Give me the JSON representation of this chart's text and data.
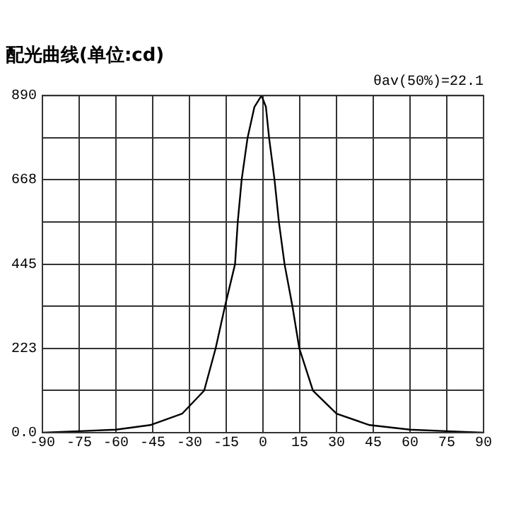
{
  "chart_data": {
    "type": "line",
    "title": "配光曲线(单位:cd)",
    "annotations": [
      "θav(50%)=22.1"
    ],
    "x": [
      -90,
      -75,
      -60,
      -46,
      -33,
      -24,
      -19.3,
      -15.5,
      -11.4,
      -10.3,
      -8.7,
      -6.3,
      -3.5,
      -0.6,
      1.2,
      2.5,
      4.7,
      6.5,
      8.8,
      12,
      14.8,
      20.4,
      30,
      43.5,
      60,
      75,
      90
    ],
    "series": [
      {
        "color": "#000000",
        "values": [
          0,
          4,
          8,
          20,
          50,
          111,
          223,
          334,
          445,
          556,
          668,
          778,
          860,
          890,
          860,
          778,
          668,
          556,
          445,
          334,
          223,
          111,
          50,
          20,
          8,
          4,
          0
        ]
      }
    ],
    "xlim": [
      -90,
      90
    ],
    "xticks": [
      -90,
      -75,
      -60,
      -45,
      -30,
      -15,
      0,
      15,
      30,
      45,
      60,
      75,
      90
    ],
    "ylim": [
      0,
      890
    ],
    "yticks": [
      {
        "value": 0,
        "label": "0.0"
      },
      {
        "value": 111.25,
        "label": null
      },
      223,
      {
        "value": 333.75,
        "label": null
      },
      445,
      {
        "value": 556.25,
        "label": null
      },
      668,
      {
        "value": 778.75,
        "label": null
      },
      890
    ],
    "grid": true,
    "legend": false,
    "marker": "none",
    "line_style": "solid"
  }
}
